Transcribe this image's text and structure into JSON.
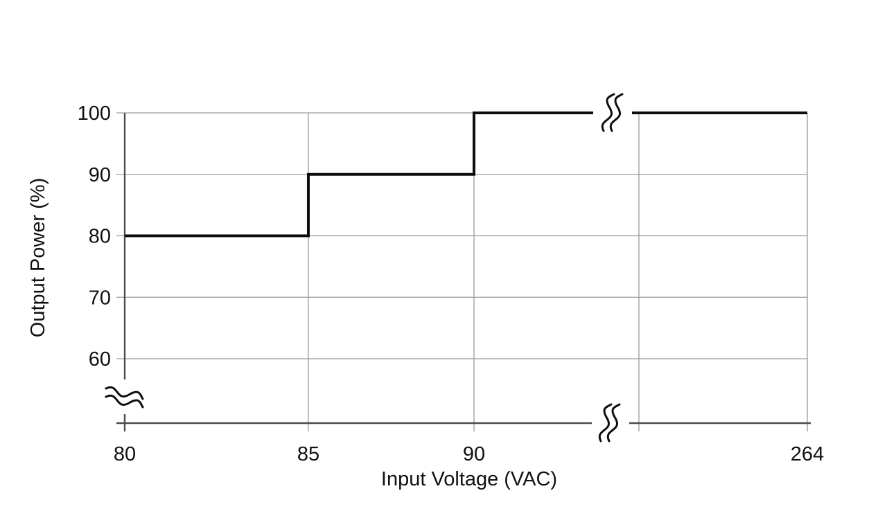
{
  "chart_data": {
    "type": "line",
    "line_style": "step",
    "title": "",
    "xlabel": "Input Voltage (VAC)",
    "ylabel": "Output Power (%)",
    "grid": true,
    "legend": false,
    "x_axis": {
      "unit": "VAC",
      "broken": true,
      "ticks": [
        {
          "label": "80",
          "value": 80,
          "pos": 0
        },
        {
          "label": "85",
          "value": 85,
          "pos": 0.269
        },
        {
          "label": "90",
          "value": 90,
          "pos": 0.5117
        },
        {
          "label": "",
          "value": null,
          "pos": 0.7533
        },
        {
          "label": "264",
          "value": 264,
          "pos": 1
        }
      ]
    },
    "y_axis": {
      "unit": "%",
      "broken": true,
      "range_shown": [
        60,
        100
      ],
      "ticks": [
        {
          "label": "60",
          "value": 60
        },
        {
          "label": "70",
          "value": 70
        },
        {
          "label": "80",
          "value": 80
        },
        {
          "label": "90",
          "value": 90
        },
        {
          "label": "100",
          "value": 100
        }
      ]
    },
    "series": [
      {
        "name": "output_power_vs_input_voltage",
        "points": [
          [
            80,
            80
          ],
          [
            85,
            80
          ],
          [
            85,
            90
          ],
          [
            90,
            90
          ],
          [
            90,
            100
          ],
          [
            264,
            100
          ]
        ]
      }
    ],
    "axis_breaks": [
      {
        "on": "series-line-at-100pct"
      },
      {
        "on": "x-axis"
      },
      {
        "on": "y-axis"
      }
    ],
    "colors": {
      "background": "#ffffff",
      "series_line": "#0d0d0d",
      "grid": "#9a9a9a",
      "axis": "#4d4d4d",
      "text": "#111111"
    }
  }
}
